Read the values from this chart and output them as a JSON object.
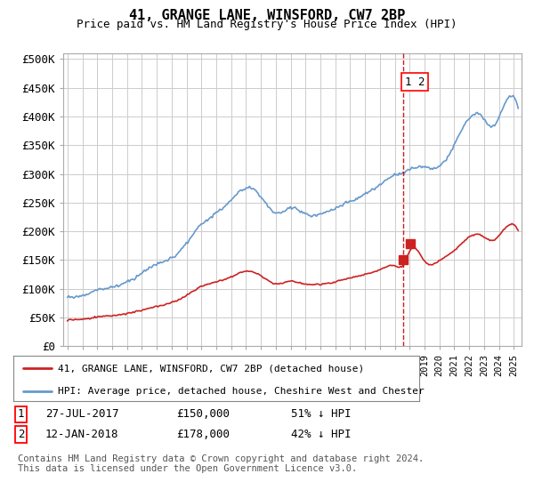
{
  "title": "41, GRANGE LANE, WINSFORD, CW7 2BP",
  "subtitle": "Price paid vs. HM Land Registry's House Price Index (HPI)",
  "ylabel_ticks": [
    "£0",
    "£50K",
    "£100K",
    "£150K",
    "£200K",
    "£250K",
    "£300K",
    "£350K",
    "£400K",
    "£450K",
    "£500K"
  ],
  "ytick_values": [
    0,
    50000,
    100000,
    150000,
    200000,
    250000,
    300000,
    350000,
    400000,
    450000,
    500000
  ],
  "ylim": [
    0,
    510000
  ],
  "xlim_start": 1994.7,
  "xlim_end": 2025.5,
  "hpi_color": "#6699cc",
  "price_color": "#cc2222",
  "dashed_line_color": "#cc0000",
  "transaction1": {
    "date_num": 2017.57,
    "price": 150000,
    "label": "1",
    "date_str": "27-JUL-2017",
    "pct": "51% ↓ HPI"
  },
  "transaction2": {
    "date_num": 2018.04,
    "price": 178000,
    "label": "2",
    "date_str": "12-JAN-2018",
    "pct": "42% ↓ HPI"
  },
  "legend1": "41, GRANGE LANE, WINSFORD, CW7 2BP (detached house)",
  "legend2": "HPI: Average price, detached house, Cheshire West and Chester",
  "footnote": "Contains HM Land Registry data © Crown copyright and database right 2024.\nThis data is licensed under the Open Government Licence v3.0.",
  "background_color": "#ffffff",
  "grid_color": "#cccccc",
  "title_fontsize": 11,
  "subtitle_fontsize": 9
}
